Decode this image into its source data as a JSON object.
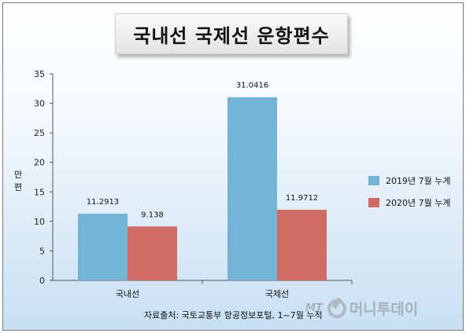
{
  "title": "국내선 국제선 운항편수",
  "source_note": "자료출처: 국토교통부 항공정보포털, 1~7월 누적",
  "watermark": {
    "prefix": "MT",
    "name": "머니투데이"
  },
  "chart_data": {
    "type": "bar",
    "categories": [
      "국내선",
      "국제선"
    ],
    "series": [
      {
        "name": "2019년 7월 누계",
        "values": [
          11.2913,
          31.0416
        ],
        "labels": [
          "11.2913",
          "31.0416"
        ],
        "color": "#73b3d5"
      },
      {
        "name": "2020년 7월 누계",
        "values": [
          9.138,
          11.9712
        ],
        "labels": [
          "9.138",
          "11.9712"
        ],
        "color": "#d16b66"
      }
    ],
    "ylabel": "만편",
    "ylim": [
      0,
      35
    ],
    "yticks": [
      0,
      5,
      10,
      15,
      20,
      25,
      30,
      35
    ],
    "legend_position": "right",
    "grid": false
  }
}
